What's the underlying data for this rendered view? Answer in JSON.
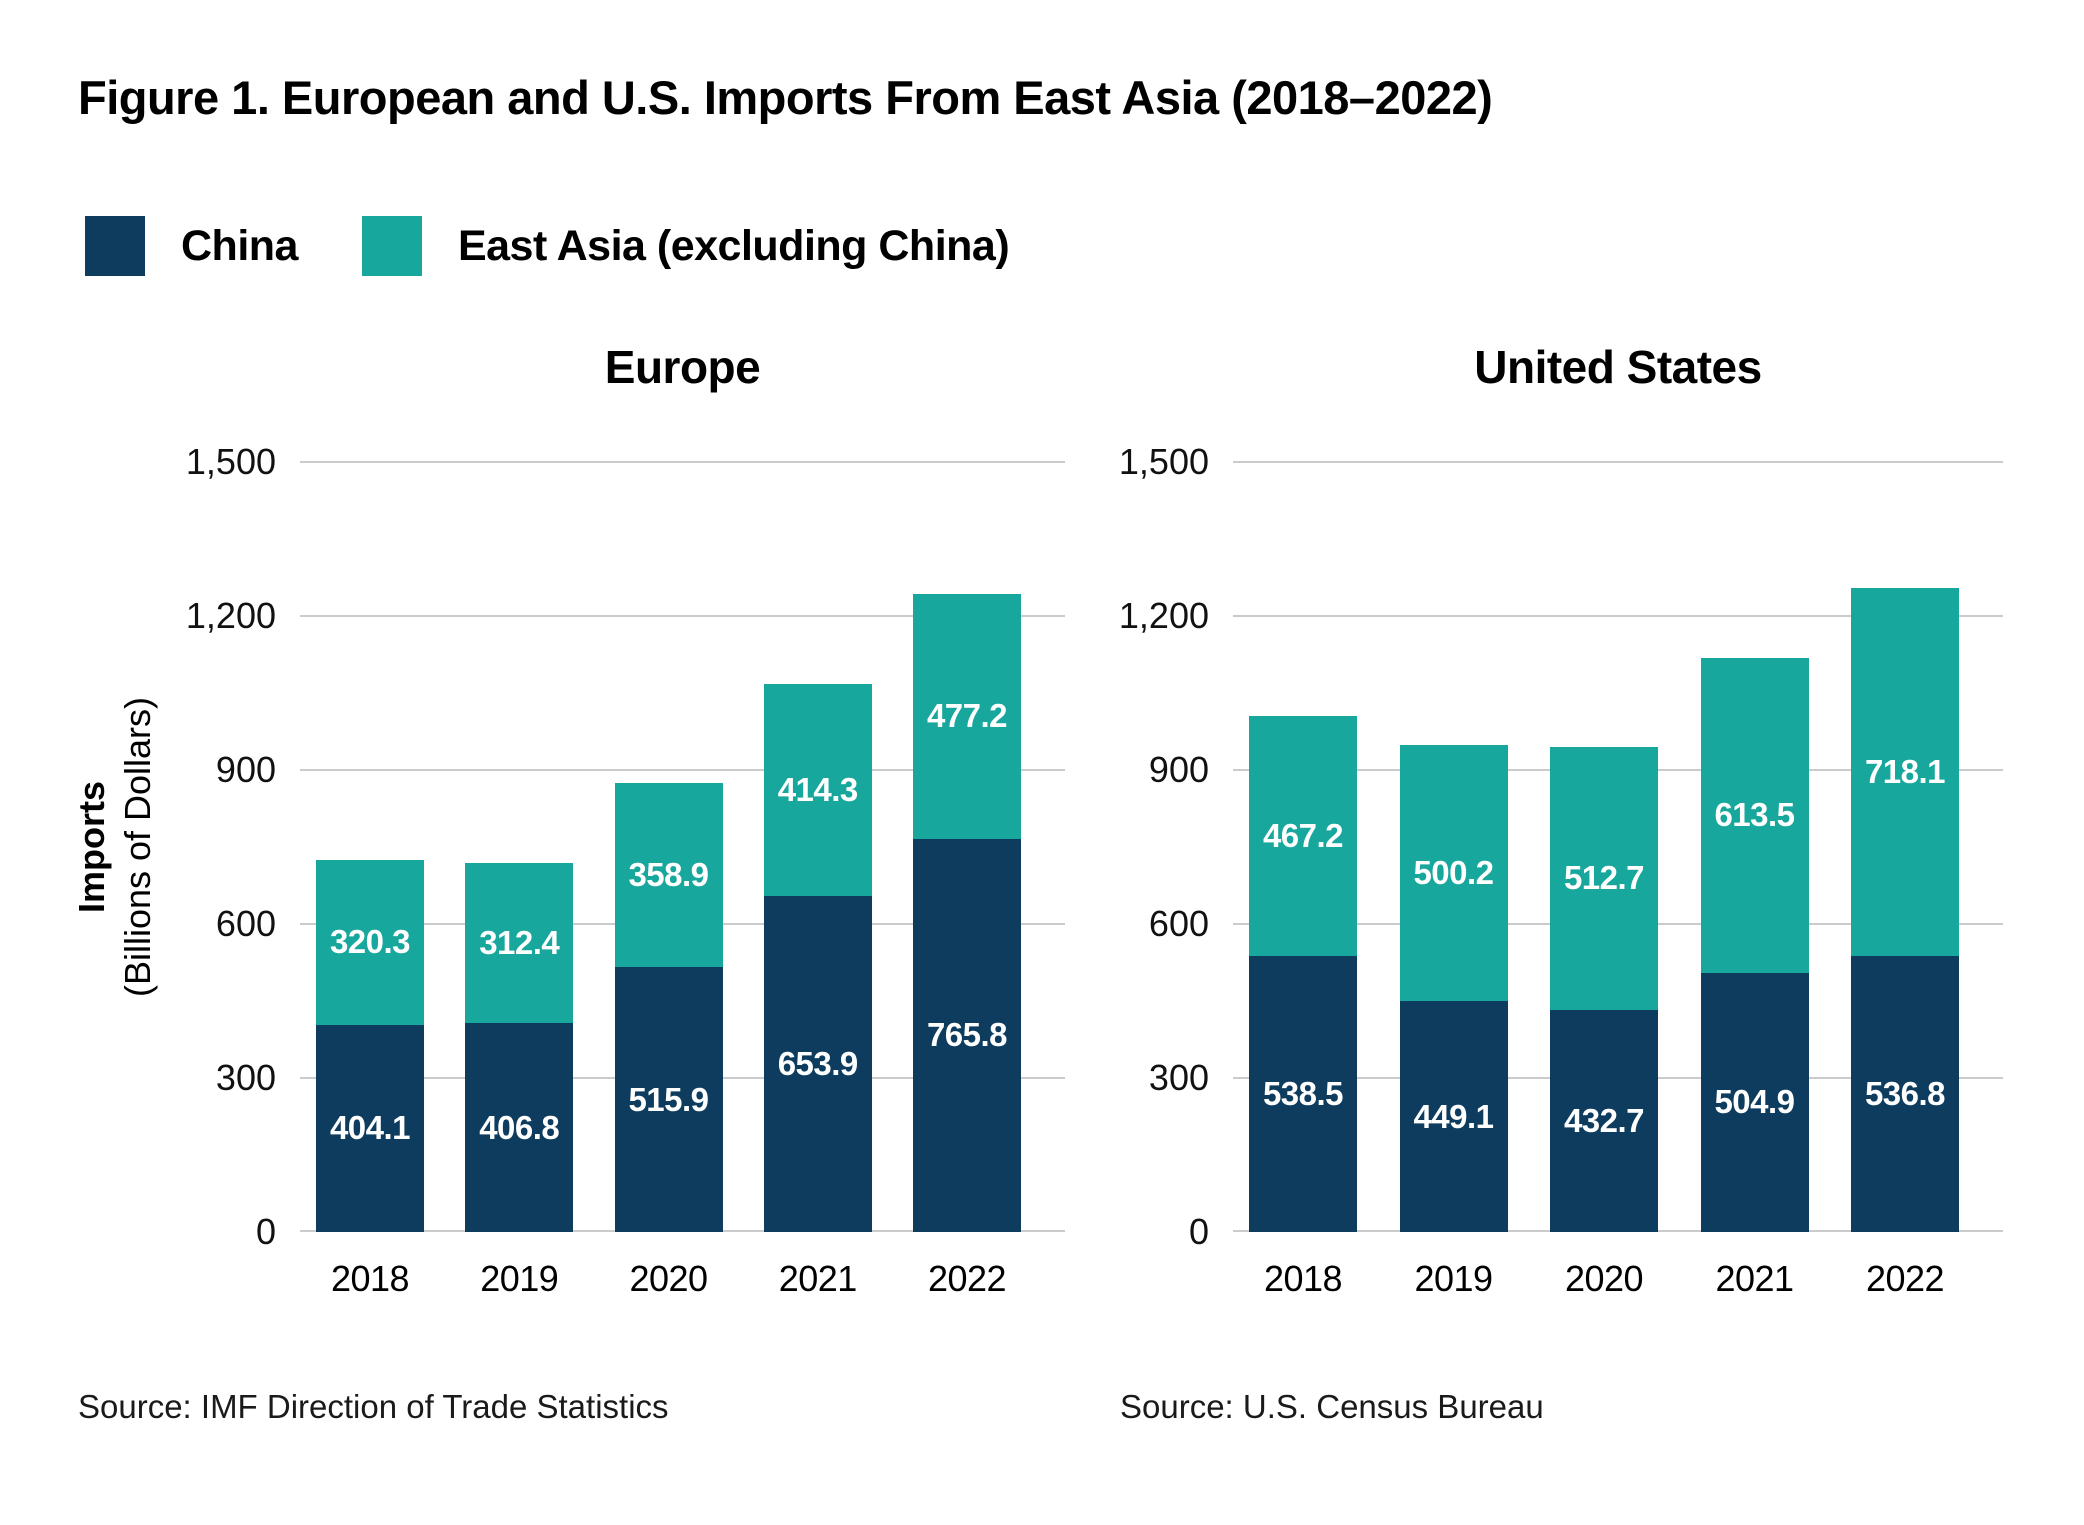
{
  "figure": {
    "title": "Figure 1. European and U.S. Imports From East Asia (2018–2022)",
    "colors": {
      "china": "#0d3c5f",
      "east_asia": "#17a79c",
      "gridline": "#c9cbcc"
    },
    "legend": [
      {
        "label": "China",
        "color_key": "china"
      },
      {
        "label": "East Asia (excluding China)",
        "color_key": "east_asia"
      }
    ]
  },
  "y_axis": {
    "label_line1": "Imports",
    "label_line2": "(Billions of Dollars)",
    "ticks": [
      "1,500",
      "1,200",
      "900",
      "600",
      "300",
      "0"
    ],
    "tick_values": [
      1500,
      1200,
      900,
      600,
      300,
      0
    ]
  },
  "chart_data": [
    {
      "type": "bar",
      "stacked": true,
      "title": "Europe",
      "categories": [
        "2018",
        "2019",
        "2020",
        "2021",
        "2022"
      ],
      "series": [
        {
          "name": "China",
          "values": [
            404.1,
            406.8,
            515.9,
            653.9,
            765.8
          ]
        },
        {
          "name": "East Asia (excluding China)",
          "values": [
            320.3,
            312.4,
            358.9,
            414.3,
            477.2
          ]
        }
      ],
      "ylim": [
        0,
        1500
      ],
      "grid": true,
      "source": "Source: IMF Direction of Trade Statistics"
    },
    {
      "type": "bar",
      "stacked": true,
      "title": "United States",
      "categories": [
        "2018",
        "2019",
        "2020",
        "2021",
        "2022"
      ],
      "series": [
        {
          "name": "China",
          "values": [
            538.5,
            449.1,
            432.7,
            504.9,
            536.8
          ]
        },
        {
          "name": "East Asia (excluding China)",
          "values": [
            467.2,
            500.2,
            512.7,
            613.5,
            718.1
          ]
        }
      ],
      "ylim": [
        0,
        1500
      ],
      "grid": true,
      "source": "Source: U.S. Census Bureau"
    }
  ]
}
